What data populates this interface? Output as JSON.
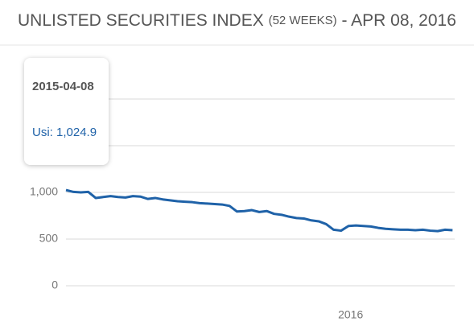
{
  "chart_data": {
    "type": "line",
    "title": "UNLISTED SECURITIES INDEX",
    "subtitle": "(52 WEEKS)",
    "date_label": "- APR 08, 2016",
    "x": [
      "2015-04-08",
      "2015-04-15",
      "2015-04-22",
      "2015-04-29",
      "2015-05-06",
      "2015-05-13",
      "2015-05-20",
      "2015-05-27",
      "2015-06-03",
      "2015-06-10",
      "2015-06-17",
      "2015-06-24",
      "2015-07-01",
      "2015-07-08",
      "2015-07-15",
      "2015-07-22",
      "2015-07-29",
      "2015-08-05",
      "2015-08-12",
      "2015-08-19",
      "2015-08-26",
      "2015-09-02",
      "2015-09-09",
      "2015-09-16",
      "2015-09-23",
      "2015-09-30",
      "2015-10-07",
      "2015-10-14",
      "2015-10-21",
      "2015-10-28",
      "2015-11-04",
      "2015-11-11",
      "2015-11-18",
      "2015-11-25",
      "2015-12-02",
      "2015-12-09",
      "2015-12-16",
      "2015-12-23",
      "2015-12-30",
      "2016-01-06",
      "2016-01-13",
      "2016-01-20",
      "2016-01-27",
      "2016-02-03",
      "2016-02-10",
      "2016-02-17",
      "2016-02-24",
      "2016-03-02",
      "2016-03-09",
      "2016-03-16",
      "2016-03-23",
      "2016-03-30",
      "2016-04-06"
    ],
    "series": [
      {
        "name": "Usi",
        "color": "#1f62a8",
        "values": [
          1024.9,
          1005,
          1000,
          1005,
          940,
          950,
          960,
          950,
          945,
          960,
          955,
          930,
          940,
          925,
          915,
          905,
          900,
          895,
          885,
          880,
          875,
          870,
          855,
          795,
          800,
          810,
          790,
          800,
          770,
          760,
          740,
          725,
          720,
          700,
          690,
          660,
          600,
          590,
          640,
          645,
          640,
          635,
          620,
          610,
          605,
          600,
          600,
          595,
          600,
          590,
          585,
          600,
          595
        ]
      }
    ],
    "xlim": [
      "2015-04-08",
      "2016-04-08"
    ],
    "xticks": [
      {
        "value": "2016-01-01",
        "label": "2016"
      }
    ],
    "ylim": [
      0,
      2000
    ],
    "yticks": [
      0,
      500,
      {
        "value": 1000,
        "label": "1,000"
      },
      {
        "value": 1500,
        "label": "1,500"
      },
      {
        "value": 2000,
        "label": "2,000"
      }
    ],
    "grid": true,
    "tooltip": {
      "title": "2015-04-08",
      "text": "Usi: 1,024.9"
    }
  }
}
